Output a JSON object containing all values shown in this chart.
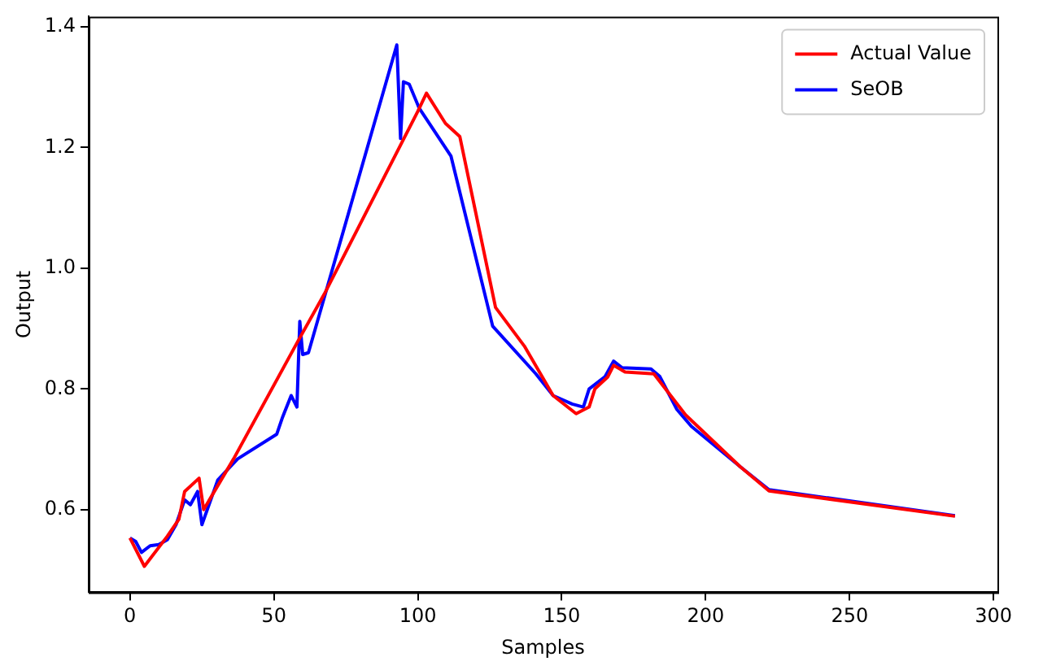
{
  "chart_data": {
    "type": "line",
    "xlabel": "Samples",
    "ylabel": "Output",
    "xlim": [
      -14.35,
      301.35
    ],
    "ylim": [
      0.463,
      1.417
    ],
    "xticks": [
      0,
      50,
      100,
      150,
      200,
      250,
      300
    ],
    "yticks": [
      0.6,
      0.8,
      {
        "value": 1.0,
        "label": "1.0"
      },
      1.2,
      1.4
    ],
    "grid": false,
    "legend": "top right",
    "marker": "none",
    "line_style": "solid",
    "series": [
      {
        "name": "Actual Value",
        "color": "#ff0000",
        "x": [
          0,
          5,
          13,
          17,
          19,
          24,
          25.6,
          36,
          58,
          67.6,
          100,
          103,
          109.6,
          114.6,
          127,
          137,
          147,
          155,
          159.5,
          161.5,
          166,
          168,
          172,
          182,
          193,
          212,
          222,
          286.6
        ],
        "values": [
          0.553,
          0.506,
          0.556,
          0.584,
          0.63,
          0.652,
          0.6,
          0.684,
          0.876,
          0.958,
          1.26,
          1.29,
          1.24,
          1.218,
          0.935,
          0.871,
          0.789,
          0.759,
          0.77,
          0.8,
          0.82,
          0.839,
          0.828,
          0.825,
          0.757,
          0.671,
          0.631,
          0.589
        ]
      },
      {
        "name": "SeOB",
        "color": "#0000ff",
        "x": [
          0,
          2,
          4,
          7,
          10,
          13,
          16,
          19,
          21,
          23.5,
          25,
          30.5,
          37.4,
          51,
          53,
          56,
          58,
          59,
          60,
          62,
          92.7,
          94,
          95,
          97,
          100.5,
          111.5,
          126,
          141,
          147,
          153.6,
          157.5,
          159.5,
          165,
          168,
          171,
          181,
          184,
          190,
          195,
          212,
          222,
          286.6
        ],
        "values": [
          0.553,
          0.547,
          0.529,
          0.54,
          0.542,
          0.55,
          0.575,
          0.616,
          0.608,
          0.63,
          0.575,
          0.649,
          0.684,
          0.725,
          0.753,
          0.789,
          0.77,
          0.912,
          0.857,
          0.86,
          1.37,
          1.215,
          1.309,
          1.305,
          1.265,
          1.186,
          0.904,
          0.825,
          0.789,
          0.775,
          0.77,
          0.8,
          0.82,
          0.846,
          0.835,
          0.833,
          0.821,
          0.766,
          0.738,
          0.671,
          0.633,
          0.59
        ]
      }
    ]
  }
}
